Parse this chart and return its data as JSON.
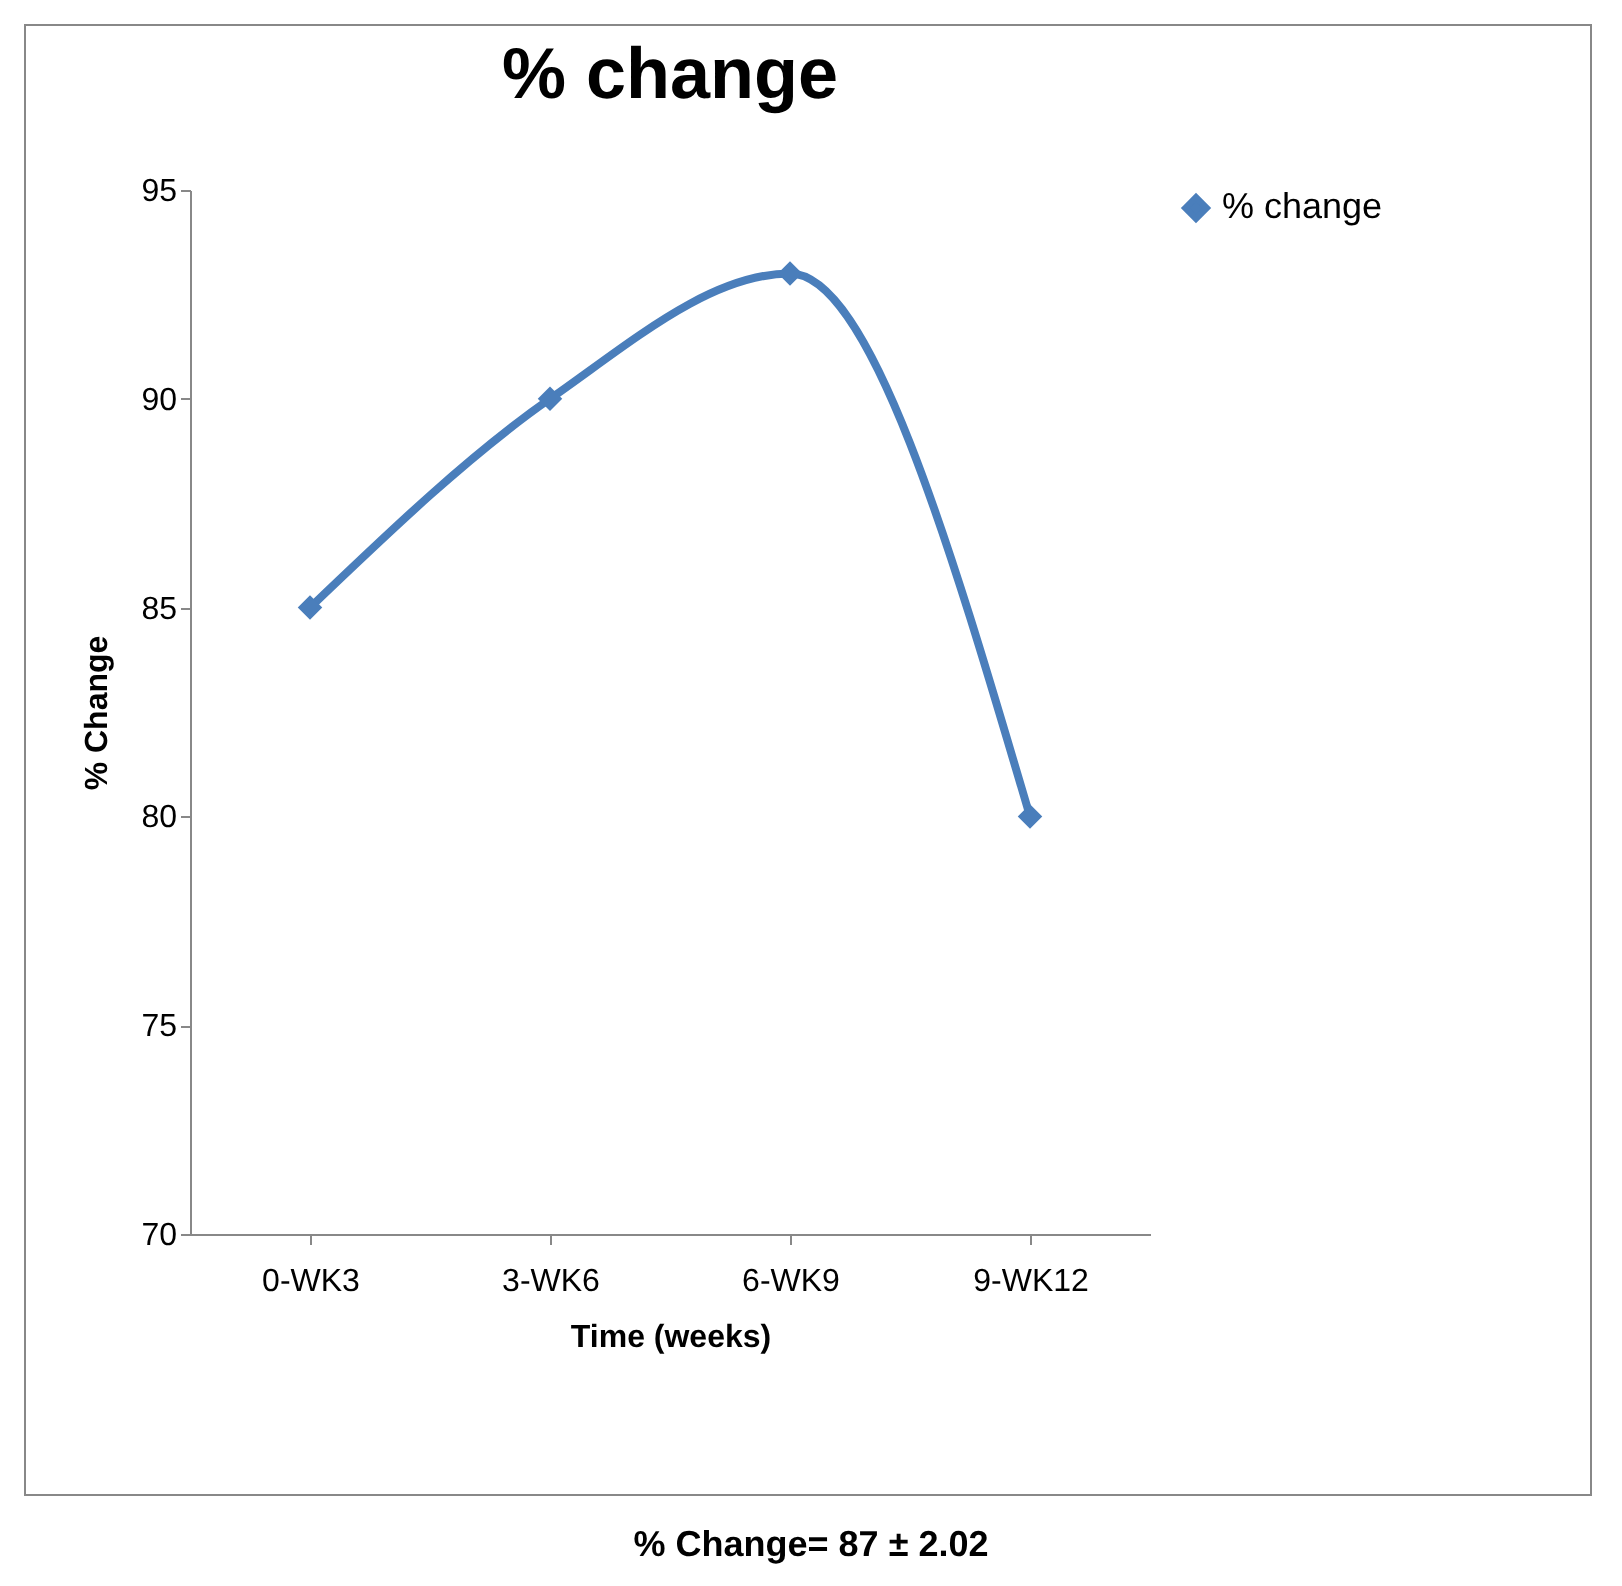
{
  "chart_data": {
    "type": "line",
    "title": "% change",
    "xlabel": "Time (weeks)",
    "ylabel": "% Change",
    "categories": [
      "0-WK3",
      "3-WK6",
      "6-WK9",
      "9-WK12"
    ],
    "series": [
      {
        "name": "% change",
        "color": "#4a7ebb",
        "values": [
          85,
          90,
          93,
          80
        ]
      }
    ],
    "ylim": [
      70,
      95
    ],
    "yticks": [
      70,
      75,
      80,
      85,
      90,
      95
    ],
    "legend": "right",
    "marker": "diamond",
    "line_style": "solid",
    "annotations": [
      "% Change= 87 ± 2.02"
    ]
  }
}
